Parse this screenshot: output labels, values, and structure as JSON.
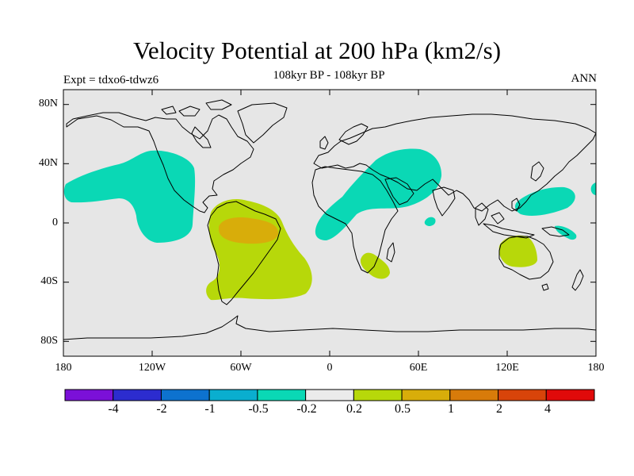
{
  "title": "Velocity Potential at 200 hPa (km2/s)",
  "subtitle_left": "Expt = tdxo6-tdwz6",
  "subtitle_center": "108kyr BP - 108kyr BP",
  "subtitle_right": "ANN",
  "lat_labels": [
    "80N",
    "40N",
    "0",
    "40S",
    "80S"
  ],
  "lon_labels": [
    "180",
    "120W",
    "60W",
    "0",
    "60E",
    "120E",
    "180"
  ],
  "colorbar": {
    "colors": [
      "#7b10d8",
      "#2c2ccf",
      "#0d72cf",
      "#0aaecf",
      "#0ad8b5",
      "#ebebeb",
      "#b7d80a",
      "#d8ad0a",
      "#d87b0a",
      "#d8440a",
      "#e00a0a"
    ],
    "labels": [
      "-4",
      "-2",
      "-1",
      "-0.5",
      "-0.2",
      "0.2",
      "0.5",
      "1",
      "2",
      "4"
    ]
  },
  "colors": {
    "background": "#e6e6e6",
    "negative_contour": "#0ad8b5",
    "positive_contour": "#b7d80a",
    "strong_positive_contour": "#d8ad0a",
    "coastline": "#000000"
  }
}
